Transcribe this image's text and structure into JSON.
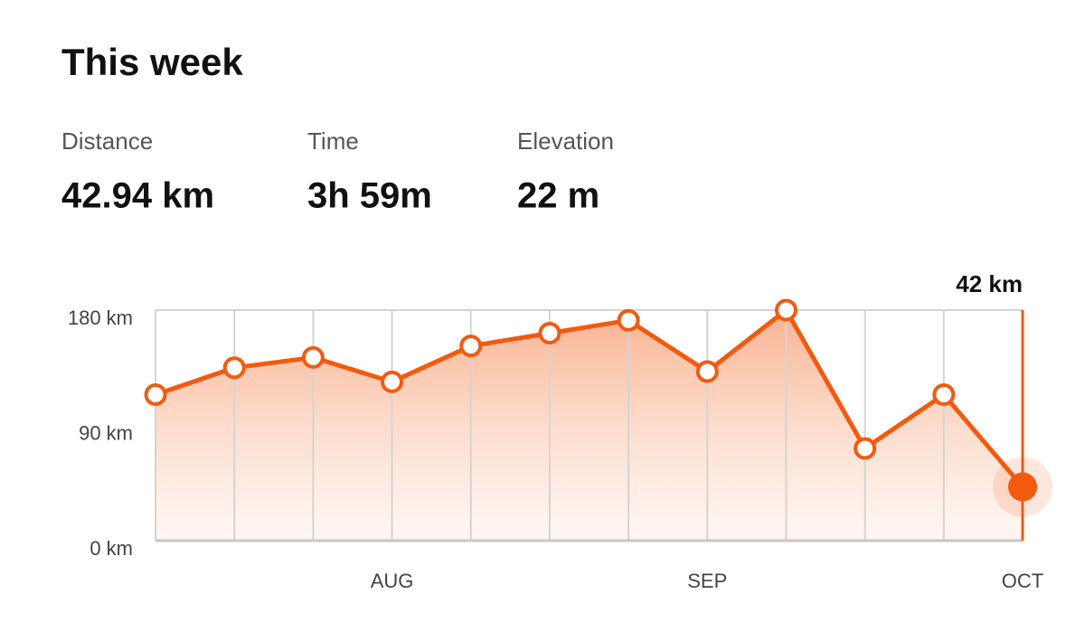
{
  "header": {
    "title": "This week"
  },
  "stats": [
    {
      "label": "Distance",
      "value": "42.94 km"
    },
    {
      "label": "Time",
      "value": "3h 59m"
    },
    {
      "label": "Elevation",
      "value": "22 m"
    }
  ],
  "chart_data": {
    "type": "line",
    "categories": [
      null,
      null,
      null,
      "AUG",
      null,
      null,
      null,
      "SEP",
      null,
      null,
      null,
      "OCT"
    ],
    "values": [
      114,
      135,
      143,
      124,
      152,
      162,
      172,
      132,
      180,
      72,
      114,
      42
    ],
    "value_labels": [
      null,
      null,
      null,
      null,
      null,
      null,
      null,
      null,
      null,
      null,
      null,
      "42 km"
    ],
    "color": "#f35a0f",
    "ylim": [
      0,
      180
    ],
    "yticks": [
      {
        "value": 0,
        "label": "0 km"
      },
      {
        "value": 90,
        "label": "90 km"
      },
      {
        "value": 180,
        "label": "180 km"
      }
    ]
  }
}
